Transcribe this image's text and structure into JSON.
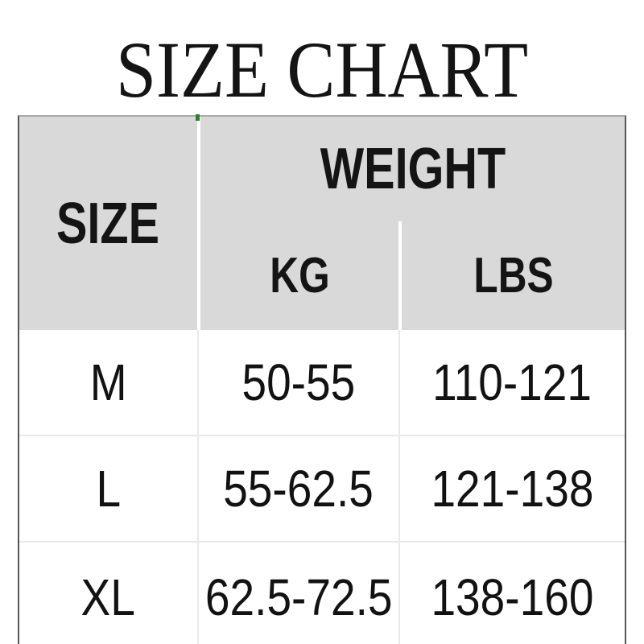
{
  "chart_data": {
    "type": "table",
    "title": "SIZE CHART",
    "headers": {
      "size": "SIZE",
      "weight_group": "WEIGHT",
      "kg": "KG",
      "lbs": "LBS"
    },
    "column_groups": [
      {
        "label": "WEIGHT",
        "spans": [
          "KG",
          "LBS"
        ]
      }
    ],
    "columns": [
      "SIZE",
      "KG",
      "LBS"
    ],
    "rows": [
      {
        "size": "M",
        "kg": "50-55",
        "lbs": "110-121"
      },
      {
        "size": "L",
        "kg": "55-62.5",
        "lbs": "121-138"
      },
      {
        "size": "XL",
        "kg": "62.5-72.5",
        "lbs": "138-160"
      }
    ],
    "layout": {
      "header_band": "gray",
      "weight_spans_kg_lbs": true,
      "last_row_cut_off_at_bottom": true
    }
  },
  "colors": {
    "background": "#ffffff",
    "header_bg": "#d9d9d9",
    "text": "#141414",
    "header_divider": "#ffffff",
    "body_divider": "#e9e9e9",
    "outer_border_sides": "#565656",
    "outer_border_top": "#a9a9a9",
    "artifact_green": "#2e7d30"
  }
}
